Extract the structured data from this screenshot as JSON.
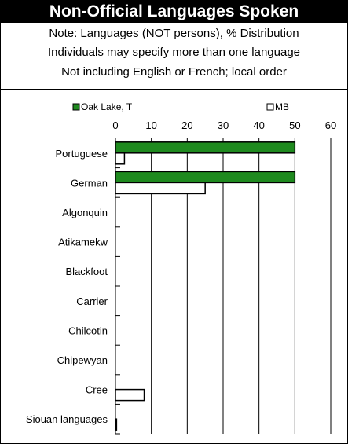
{
  "header": {
    "title": "Non-Official Languages Spoken",
    "notes": [
      "Note: Languages (NOT persons), % Distribution",
      "Individuals may specify more than one language",
      "Not including English or French; local order"
    ]
  },
  "colors": {
    "primary": "#1f8a1f",
    "secondary": "#ffffff",
    "stroke": "#000000",
    "title_bg": "#000000"
  },
  "chart_data": {
    "type": "bar",
    "orientation": "horizontal",
    "categories": [
      "Portuguese",
      "German",
      "Algonquin",
      "Atikamekw",
      "Blackfoot",
      "Carrier",
      "Chilcotin",
      "Chipewyan",
      "Cree",
      "Siouan languages"
    ],
    "series": [
      {
        "name": "Oak Lake, T",
        "values": [
          50,
          50,
          0,
          0,
          0,
          0,
          0,
          0,
          0,
          0
        ]
      },
      {
        "name": "MB",
        "values": [
          2.5,
          25,
          0,
          0,
          0,
          0,
          0,
          0,
          8,
          0.3
        ]
      }
    ],
    "xlim": [
      0,
      60
    ],
    "xticks": [
      0,
      10,
      20,
      30,
      40,
      50,
      60
    ],
    "grid": true,
    "legend_position": "top"
  }
}
